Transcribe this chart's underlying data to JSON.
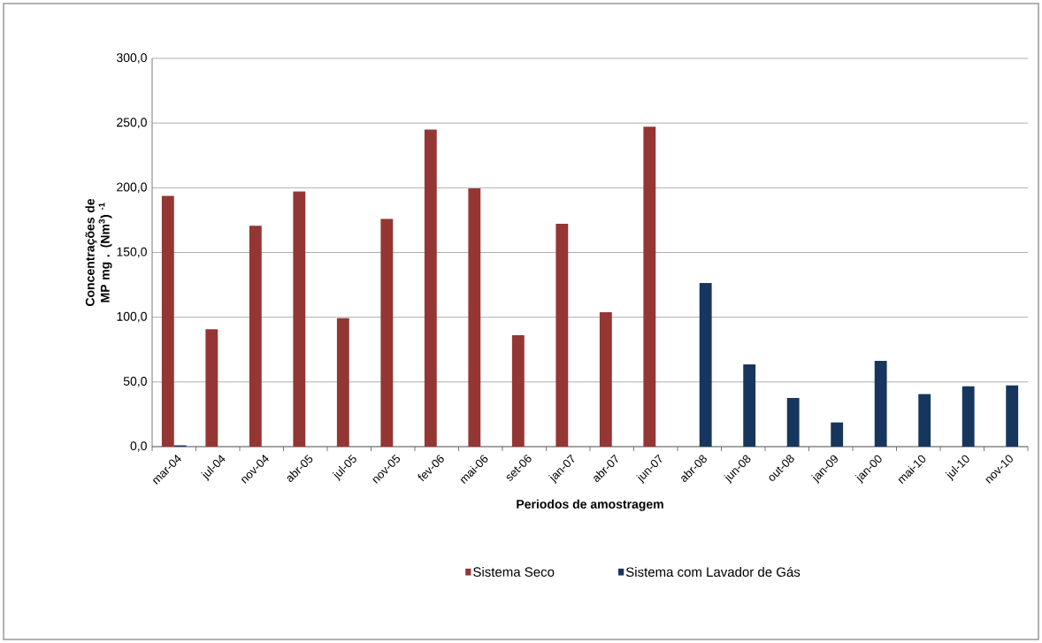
{
  "chart_data": {
    "type": "bar",
    "xlabel": "Periodos de amostragem",
    "ylabel": "Concentrações de MP mg . (Nm$^{3}$) $^{-1}$",
    "categories": [
      "mar-04",
      "jul-04",
      "nov-04",
      "abr-05",
      "jul-05",
      "nov-05",
      "fev-06",
      "mai-06",
      "set-06",
      "jan-07",
      "abr-07",
      "jun-07",
      "abr-08",
      "jun-08",
      "out-08",
      "jan-09",
      "jan-00",
      "mai-10",
      "jul-10",
      "nov-10"
    ],
    "series": [
      {
        "name": "Sistema Seco",
        "color": "#943634",
        "values": [
          193.8,
          90.7,
          170.6,
          197.2,
          99.2,
          176.0,
          244.9,
          199.6,
          86.1,
          172.2,
          103.9,
          247.2,
          null,
          null,
          null,
          null,
          null,
          null,
          null,
          null
        ]
      },
      {
        "name": "Sistema com Lavador de Gás",
        "color": "#17365d",
        "values": [
          1.0,
          null,
          null,
          null,
          null,
          null,
          null,
          null,
          null,
          null,
          null,
          null,
          126.4,
          63.6,
          37.6,
          18.7,
          66.2,
          40.6,
          46.7,
          47.3
        ]
      }
    ],
    "ylim": [
      0,
      300
    ],
    "yticks": [
      {
        "value": 0,
        "label": "0,0"
      },
      {
        "value": 50,
        "label": "50,0"
      },
      {
        "value": 100,
        "label": "100,0"
      },
      {
        "value": 150,
        "label": "150,0"
      },
      {
        "value": 200,
        "label": "200,0"
      },
      {
        "value": 250,
        "label": "250,0"
      },
      {
        "value": 300,
        "label": "300,0"
      }
    ],
    "grid": "y",
    "legend": "bottom"
  }
}
